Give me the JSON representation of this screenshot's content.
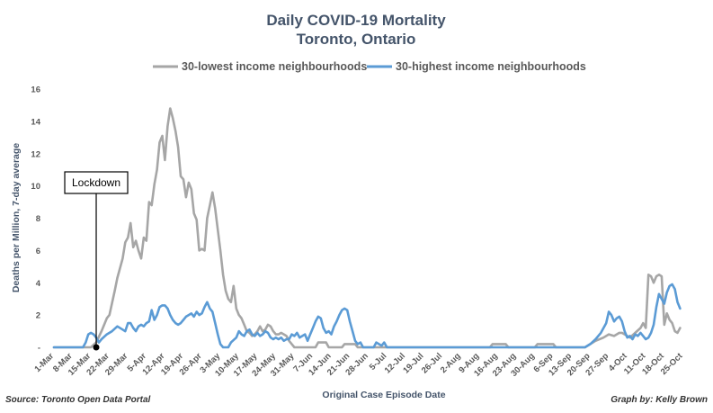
{
  "chart_data": {
    "type": "line",
    "title": "Daily COVID-19 Mortality",
    "subtitle": "Toronto, Ontario",
    "xlabel": "Original Case Episode Date",
    "ylabel": "Deaths per Million, 7-day average",
    "ylim": [
      0,
      16
    ],
    "yticks": [
      "-",
      "2",
      "4",
      "6",
      "8",
      "10",
      "12",
      "14",
      "16"
    ],
    "grid": false,
    "legend_position": "top-center",
    "source": "Source: Toronto Open Data Portal",
    "credit": "Graph by: Kelly Brown",
    "x_start": "1-Mar",
    "x_end": "31-Oct",
    "x_ticks": [
      {
        "day": 0,
        "label": "1-Mar"
      },
      {
        "day": 7,
        "label": "8-Mar"
      },
      {
        "day": 14,
        "label": "15-Mar"
      },
      {
        "day": 21,
        "label": "22-Mar"
      },
      {
        "day": 28,
        "label": "29-Mar"
      },
      {
        "day": 35,
        "label": "5-Apr"
      },
      {
        "day": 42,
        "label": "12-Apr"
      },
      {
        "day": 49,
        "label": "19-Apr"
      },
      {
        "day": 56,
        "label": "26-Apr"
      },
      {
        "day": 63,
        "label": "3-May"
      },
      {
        "day": 70,
        "label": "10-May"
      },
      {
        "day": 77,
        "label": "17-May"
      },
      {
        "day": 84,
        "label": "24-May"
      },
      {
        "day": 91,
        "label": "31-May"
      },
      {
        "day": 98,
        "label": "7-Jun"
      },
      {
        "day": 105,
        "label": "14-Jun"
      },
      {
        "day": 112,
        "label": "21-Jun"
      },
      {
        "day": 119,
        "label": "28-Jun"
      },
      {
        "day": 126,
        "label": "5-Jul"
      },
      {
        "day": 133,
        "label": "12-Jul"
      },
      {
        "day": 140,
        "label": "19-Jul"
      },
      {
        "day": 147,
        "label": "26-Jul"
      },
      {
        "day": 154,
        "label": "2-Aug"
      },
      {
        "day": 161,
        "label": "9-Aug"
      },
      {
        "day": 168,
        "label": "16-Aug"
      },
      {
        "day": 175,
        "label": "23-Aug"
      },
      {
        "day": 182,
        "label": "30-Aug"
      },
      {
        "day": 189,
        "label": "6-Sep"
      },
      {
        "day": 196,
        "label": "13-Sep"
      },
      {
        "day": 203,
        "label": "20-Sep"
      },
      {
        "day": 210,
        "label": "27-Sep"
      },
      {
        "day": 217,
        "label": "4-Oct"
      },
      {
        "day": 224,
        "label": "11-Oct"
      },
      {
        "day": 231,
        "label": "18-Oct"
      },
      {
        "day": 238,
        "label": "25-Oct"
      }
    ],
    "annotation": {
      "label": "Lockdown",
      "day": 16
    },
    "series": [
      {
        "name": "30-lowest income neighbourhoods",
        "color": "#a6a6a6",
        "points": [
          [
            0,
            0
          ],
          [
            14,
            0
          ],
          [
            16,
            0.3
          ],
          [
            18,
            1.0
          ],
          [
            20,
            1.8
          ],
          [
            21,
            2.0
          ],
          [
            23,
            3.5
          ],
          [
            24,
            4.3
          ],
          [
            26,
            5.5
          ],
          [
            27,
            6.5
          ],
          [
            28,
            6.8
          ],
          [
            29,
            7.7
          ],
          [
            30,
            6.2
          ],
          [
            31,
            6.6
          ],
          [
            32,
            6.0
          ],
          [
            33,
            5.5
          ],
          [
            34,
            6.8
          ],
          [
            35,
            6.6
          ],
          [
            36,
            9.0
          ],
          [
            37,
            8.8
          ],
          [
            38,
            10.1
          ],
          [
            39,
            11.0
          ],
          [
            40,
            12.7
          ],
          [
            41,
            13.1
          ],
          [
            42,
            11.6
          ],
          [
            43,
            13.7
          ],
          [
            44,
            14.8
          ],
          [
            45,
            14.2
          ],
          [
            46,
            13.4
          ],
          [
            47,
            12.4
          ],
          [
            48,
            10.6
          ],
          [
            49,
            10.4
          ],
          [
            50,
            9.3
          ],
          [
            51,
            10.2
          ],
          [
            52,
            9.8
          ],
          [
            53,
            8.3
          ],
          [
            54,
            7.9
          ],
          [
            55,
            6.0
          ],
          [
            56,
            6.1
          ],
          [
            57,
            6.0
          ],
          [
            58,
            8.0
          ],
          [
            59,
            8.8
          ],
          [
            60,
            9.6
          ],
          [
            61,
            8.6
          ],
          [
            62,
            7.3
          ],
          [
            63,
            6.0
          ],
          [
            64,
            4.5
          ],
          [
            65,
            3.5
          ],
          [
            66,
            3.0
          ],
          [
            67,
            2.8
          ],
          [
            68,
            3.8
          ],
          [
            69,
            2.4
          ],
          [
            70,
            2.0
          ],
          [
            71,
            1.8
          ],
          [
            72,
            1.4
          ],
          [
            73,
            1.0
          ],
          [
            74,
            0.9
          ],
          [
            75,
            0.7
          ],
          [
            76,
            0.8
          ],
          [
            77,
            1.0
          ],
          [
            78,
            1.3
          ],
          [
            79,
            1.0
          ],
          [
            80,
            1.1
          ],
          [
            81,
            1.4
          ],
          [
            82,
            1.3
          ],
          [
            83,
            1.0
          ],
          [
            84,
            0.8
          ],
          [
            85,
            0.8
          ],
          [
            86,
            0.9
          ],
          [
            87,
            0.8
          ],
          [
            88,
            0.7
          ],
          [
            89,
            0.4
          ],
          [
            90,
            0.2
          ],
          [
            91,
            0
          ],
          [
            99,
            0
          ],
          [
            100,
            0.3
          ],
          [
            103,
            0.3
          ],
          [
            104,
            0
          ],
          [
            109,
            0
          ],
          [
            110,
            0.2
          ],
          [
            114,
            0.2
          ],
          [
            115,
            0
          ],
          [
            165,
            0
          ],
          [
            166,
            0.2
          ],
          [
            171,
            0.2
          ],
          [
            172,
            0
          ],
          [
            182,
            0
          ],
          [
            183,
            0.2
          ],
          [
            189,
            0.2
          ],
          [
            190,
            0
          ],
          [
            201,
            0
          ],
          [
            203,
            0.2
          ],
          [
            205,
            0.4
          ],
          [
            208,
            0.6
          ],
          [
            210,
            0.8
          ],
          [
            212,
            0.7
          ],
          [
            214,
            0.9
          ],
          [
            215,
            0.9
          ],
          [
            216,
            0.8
          ],
          [
            218,
            0.6
          ],
          [
            220,
            0.9
          ],
          [
            222,
            1.2
          ],
          [
            223,
            1.5
          ],
          [
            224,
            1.2
          ],
          [
            225,
            4.5
          ],
          [
            226,
            4.4
          ],
          [
            227,
            4.0
          ],
          [
            228,
            4.4
          ],
          [
            229,
            4.5
          ],
          [
            230,
            4.4
          ],
          [
            231,
            1.4
          ],
          [
            232,
            2.1
          ],
          [
            233,
            1.7
          ],
          [
            234,
            1.5
          ],
          [
            235,
            1.0
          ],
          [
            236,
            0.9
          ],
          [
            237,
            1.2
          ]
        ]
      },
      {
        "name": "30-highest income neighbourhoods",
        "color": "#5b9bd5",
        "points": [
          [
            0,
            0
          ],
          [
            11,
            0
          ],
          [
            12,
            0.3
          ],
          [
            13,
            0.8
          ],
          [
            14,
            0.9
          ],
          [
            15,
            0.8
          ],
          [
            16,
            0.6
          ],
          [
            17,
            0.3
          ],
          [
            18,
            0.5
          ],
          [
            20,
            0.8
          ],
          [
            22,
            1.0
          ],
          [
            24,
            1.3
          ],
          [
            26,
            1.1
          ],
          [
            27,
            1.0
          ],
          [
            28,
            1.5
          ],
          [
            29,
            1.5
          ],
          [
            30,
            1.2
          ],
          [
            31,
            1.0
          ],
          [
            32,
            1.3
          ],
          [
            33,
            1.4
          ],
          [
            34,
            1.3
          ],
          [
            35,
            1.5
          ],
          [
            36,
            1.6
          ],
          [
            37,
            2.3
          ],
          [
            38,
            1.7
          ],
          [
            39,
            2.0
          ],
          [
            40,
            2.5
          ],
          [
            41,
            2.6
          ],
          [
            42,
            2.6
          ],
          [
            43,
            2.4
          ],
          [
            44,
            2.0
          ],
          [
            45,
            1.7
          ],
          [
            46,
            1.5
          ],
          [
            47,
            1.4
          ],
          [
            48,
            1.5
          ],
          [
            49,
            1.7
          ],
          [
            50,
            1.9
          ],
          [
            51,
            2.0
          ],
          [
            52,
            2.1
          ],
          [
            53,
            1.9
          ],
          [
            54,
            2.2
          ],
          [
            55,
            2.0
          ],
          [
            56,
            2.1
          ],
          [
            57,
            2.5
          ],
          [
            58,
            2.8
          ],
          [
            59,
            2.4
          ],
          [
            60,
            2.2
          ],
          [
            61,
            1.5
          ],
          [
            62,
            0.8
          ],
          [
            63,
            0.2
          ],
          [
            64,
            0
          ],
          [
            66,
            0
          ],
          [
            67,
            0.3
          ],
          [
            69,
            0.6
          ],
          [
            70,
            1.0
          ],
          [
            71,
            0.8
          ],
          [
            72,
            0.7
          ],
          [
            73,
            1.0
          ],
          [
            74,
            1.1
          ],
          [
            75,
            0.8
          ],
          [
            76,
            0.7
          ],
          [
            77,
            0.9
          ],
          [
            78,
            0.7
          ],
          [
            79,
            0.8
          ],
          [
            80,
            1.0
          ],
          [
            81,
            0.9
          ],
          [
            82,
            0.6
          ],
          [
            83,
            0.5
          ],
          [
            84,
            0.6
          ],
          [
            85,
            0.5
          ],
          [
            86,
            0.6
          ],
          [
            87,
            0.4
          ],
          [
            88,
            0.5
          ],
          [
            89,
            0.5
          ],
          [
            90,
            0.8
          ],
          [
            91,
            0.7
          ],
          [
            92,
            0.9
          ],
          [
            93,
            0.6
          ],
          [
            94,
            0.7
          ],
          [
            95,
            0.8
          ],
          [
            96,
            0.4
          ],
          [
            97,
            0.8
          ],
          [
            98,
            1.2
          ],
          [
            99,
            1.6
          ],
          [
            100,
            1.9
          ],
          [
            101,
            1.8
          ],
          [
            102,
            1.2
          ],
          [
            103,
            0.9
          ],
          [
            104,
            1.0
          ],
          [
            105,
            0.8
          ],
          [
            106,
            1.3
          ],
          [
            107,
            1.6
          ],
          [
            108,
            2.0
          ],
          [
            109,
            2.3
          ],
          [
            110,
            2.4
          ],
          [
            111,
            2.3
          ],
          [
            112,
            1.6
          ],
          [
            113,
            1.0
          ],
          [
            114,
            0.4
          ],
          [
            115,
            0.2
          ],
          [
            116,
            0.3
          ],
          [
            117,
            0
          ],
          [
            121,
            0
          ],
          [
            122,
            0.3
          ],
          [
            124,
            0.1
          ],
          [
            125,
            0.3
          ],
          [
            126,
            0
          ],
          [
            201,
            0
          ],
          [
            203,
            0.2
          ],
          [
            205,
            0.5
          ],
          [
            207,
            0.9
          ],
          [
            209,
            1.5
          ],
          [
            210,
            2.2
          ],
          [
            211,
            2.0
          ],
          [
            212,
            1.6
          ],
          [
            213,
            1.8
          ],
          [
            214,
            1.9
          ],
          [
            215,
            1.6
          ],
          [
            216,
            1.0
          ],
          [
            217,
            0.6
          ],
          [
            218,
            0.7
          ],
          [
            219,
            0.5
          ],
          [
            220,
            0.8
          ],
          [
            221,
            0.7
          ],
          [
            222,
            0.9
          ],
          [
            223,
            0.7
          ],
          [
            224,
            0.5
          ],
          [
            225,
            0.6
          ],
          [
            226,
            0.9
          ],
          [
            227,
            1.4
          ],
          [
            228,
            2.5
          ],
          [
            229,
            3.3
          ],
          [
            230,
            3.0
          ],
          [
            231,
            2.7
          ],
          [
            232,
            3.4
          ],
          [
            233,
            3.8
          ],
          [
            234,
            3.9
          ],
          [
            235,
            3.6
          ],
          [
            236,
            2.8
          ],
          [
            237,
            2.4
          ]
        ]
      }
    ]
  }
}
